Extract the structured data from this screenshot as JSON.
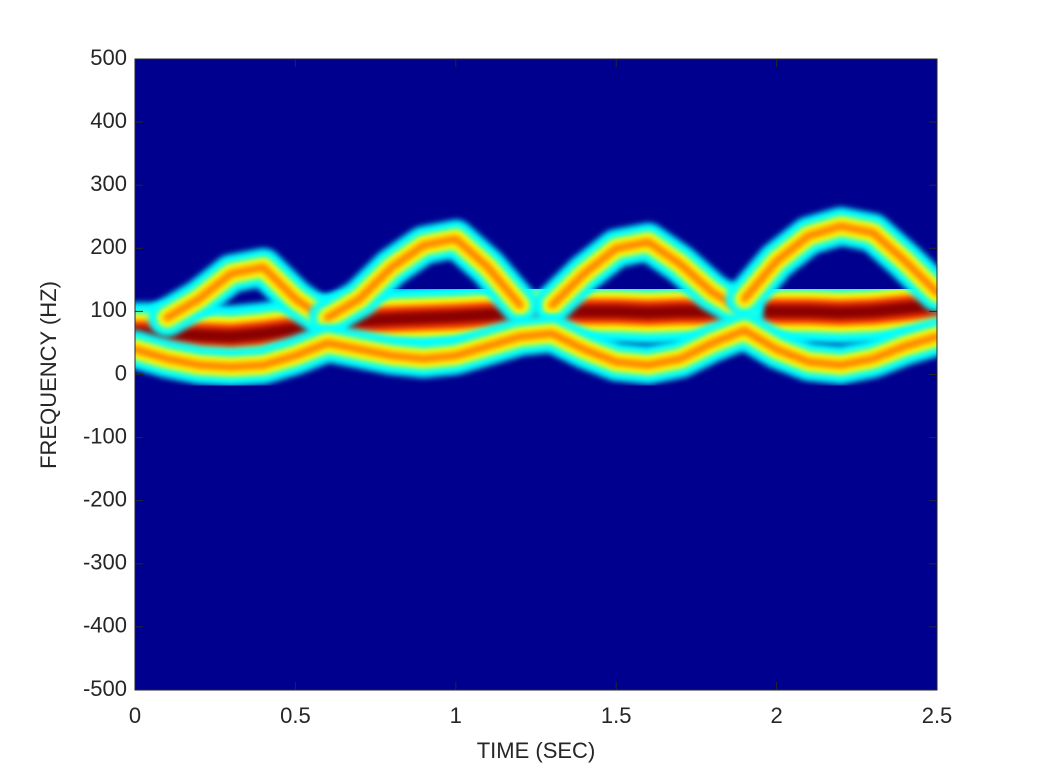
{
  "chart_data": {
    "type": "spectrogram",
    "xlabel": "TIME (SEC)",
    "ylabel": "FREQUENCY (HZ)",
    "xlim": [
      0,
      2.5
    ],
    "ylim": [
      -500,
      500
    ],
    "xticks": [
      0,
      0.5,
      1,
      1.5,
      2,
      2.5
    ],
    "yticks": [
      -500,
      -400,
      -300,
      -200,
      -100,
      0,
      100,
      200,
      300,
      400,
      500
    ],
    "background": "#00008f",
    "x": [
      0,
      0.1,
      0.2,
      0.3,
      0.4,
      0.5,
      0.6,
      0.7,
      0.8,
      0.9,
      1.0,
      1.1,
      1.2,
      1.3,
      1.4,
      1.5,
      1.6,
      1.7,
      1.8,
      1.9,
      2.0,
      2.1,
      2.2,
      2.3,
      2.4,
      2.5
    ],
    "series": [
      {
        "color": "#8b0000",
        "values": [
          65,
          65,
          62,
          60,
          65,
          72,
          78,
          85,
          88,
          90,
          92,
          95,
          98,
          100,
          100,
          100,
          98,
          100,
          100,
          100,
          100,
          100,
          98,
          100,
          105,
          110
        ]
      },
      {
        "color": "#ff8000",
        "values": [
          null,
          90,
          120,
          160,
          170,
          120,
          85,
          null,
          null,
          null,
          null,
          null,
          null,
          110,
          160,
          200,
          210,
          175,
          130,
          100,
          null,
          null,
          null,
          null,
          null,
          null
        ]
      },
      {
        "color": "#ff8000",
        "values": [
          null,
          null,
          null,
          null,
          null,
          null,
          90,
          120,
          170,
          205,
          215,
          170,
          110,
          null,
          null,
          null,
          null,
          null,
          null,
          120,
          180,
          220,
          235,
          225,
          180,
          130
        ]
      },
      {
        "color": "#ff8000",
        "values": [
          40,
          25,
          15,
          12,
          15,
          30,
          50,
          40,
          30,
          25,
          30,
          45,
          60,
          65,
          40,
          20,
          15,
          25,
          50,
          70,
          40,
          20,
          15,
          25,
          45,
          60
        ]
      }
    ]
  }
}
